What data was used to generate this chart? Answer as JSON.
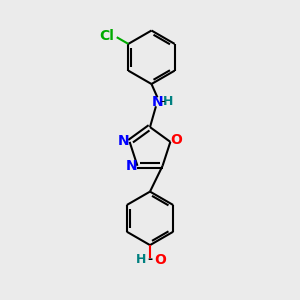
{
  "bg_color": "#ebebeb",
  "bond_color": "#000000",
  "n_color": "#0000ff",
  "o_color": "#ff0000",
  "cl_color": "#00aa00",
  "h_color": "#008080",
  "line_width": 1.5,
  "figsize": [
    3.0,
    3.0
  ],
  "dpi": 100,
  "xlim": [
    0,
    10
  ],
  "ylim": [
    0,
    10
  ]
}
